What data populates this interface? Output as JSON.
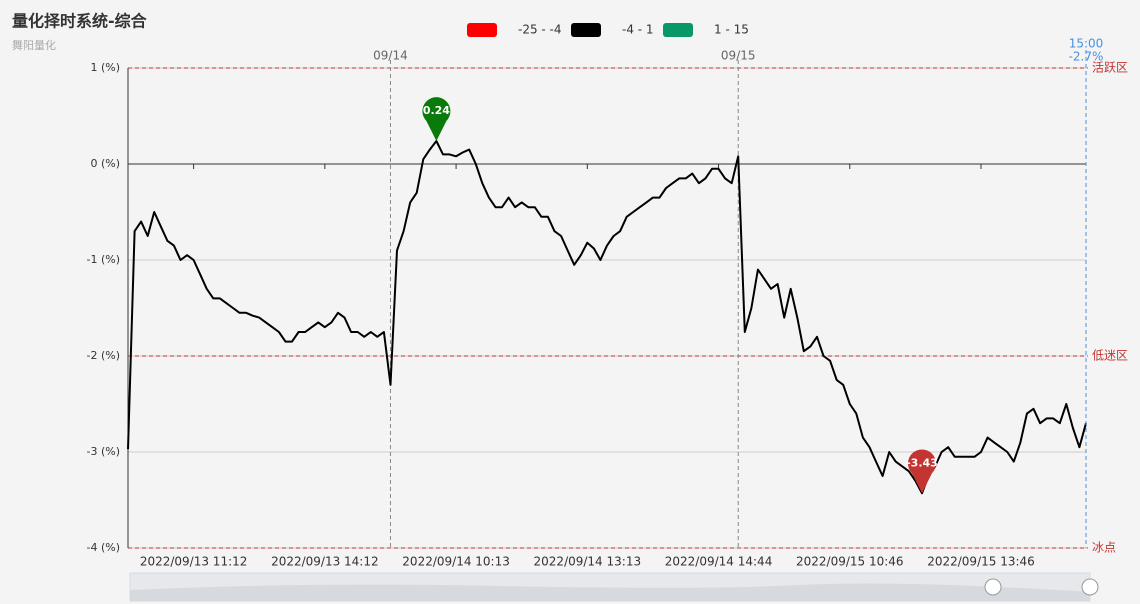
{
  "chart_data": {
    "type": "line",
    "title": "量化择时系统-综合",
    "subtitle": "舞阳量化",
    "visual_map": [
      {
        "label": "-25 - -4",
        "color": "#ff0000"
      },
      {
        "label": "-4 - 1",
        "color": "#000000"
      },
      {
        "label": "1 - 15",
        "color": "#079768"
      }
    ],
    "categories": [
      null,
      null,
      null,
      null,
      null,
      null,
      null,
      null,
      null,
      null,
      "2022/09/13 11:12",
      null,
      null,
      null,
      null,
      null,
      null,
      null,
      null,
      null,
      null,
      null,
      null,
      null,
      null,
      null,
      null,
      null,
      null,
      null,
      "2022/09/13 14:12",
      null,
      null,
      null,
      null,
      null,
      null,
      null,
      null,
      null,
      null,
      null,
      null,
      null,
      null,
      null,
      null,
      null,
      null,
      null,
      "2022/09/14 10:13",
      null,
      null,
      null,
      null,
      null,
      null,
      null,
      null,
      null,
      null,
      null,
      null,
      null,
      null,
      null,
      null,
      null,
      null,
      null,
      "2022/09/14 13:13",
      null,
      null,
      null,
      null,
      null,
      null,
      null,
      null,
      null,
      null,
      null,
      null,
      null,
      null,
      null,
      null,
      null,
      null,
      null,
      "2022/09/14 14:44",
      null,
      null,
      null,
      null,
      null,
      null,
      null,
      null,
      null,
      null,
      null,
      null,
      null,
      null,
      null,
      null,
      null,
      null,
      null,
      "2022/09/15 10:46",
      null,
      null,
      null,
      null,
      null,
      null,
      null,
      null,
      null,
      null,
      null,
      null,
      null,
      null,
      null,
      null,
      null,
      null,
      null,
      "2022/09/15 13:46",
      null,
      null,
      null,
      null,
      null,
      null,
      null,
      null,
      null,
      null,
      null,
      null,
      null,
      null,
      null,
      null
    ],
    "series": [
      {
        "color": "#000000",
        "values": [
          -2.97,
          -0.7,
          -0.6,
          -0.75,
          -0.5,
          -0.65,
          -0.8,
          -0.85,
          -1.0,
          -0.95,
          -1.0,
          -1.15,
          -1.3,
          -1.4,
          -1.4,
          -1.45,
          -1.5,
          -1.55,
          -1.55,
          -1.58,
          -1.6,
          -1.65,
          -1.7,
          -1.75,
          -1.85,
          -1.85,
          -1.75,
          -1.75,
          -1.7,
          -1.65,
          -1.7,
          -1.65,
          -1.55,
          -1.6,
          -1.75,
          -1.75,
          -1.8,
          -1.75,
          -1.8,
          -1.75,
          -2.3,
          -0.9,
          -0.7,
          -0.4,
          -0.3,
          0.05,
          0.15,
          0.24,
          0.1,
          0.1,
          0.08,
          0.12,
          0.15,
          0.0,
          -0.2,
          -0.35,
          -0.45,
          -0.45,
          -0.35,
          -0.45,
          -0.4,
          -0.45,
          -0.45,
          -0.55,
          -0.55,
          -0.7,
          -0.75,
          -0.9,
          -1.05,
          -0.95,
          -0.82,
          -0.88,
          -1.0,
          -0.85,
          -0.75,
          -0.7,
          -0.55,
          -0.5,
          -0.45,
          -0.4,
          -0.35,
          -0.35,
          -0.25,
          -0.2,
          -0.15,
          -0.15,
          -0.1,
          -0.2,
          -0.15,
          -0.05,
          -0.05,
          -0.15,
          -0.2,
          0.08,
          -1.75,
          -1.5,
          -1.1,
          -1.2,
          -1.3,
          -1.25,
          -1.6,
          -1.3,
          -1.6,
          -1.95,
          -1.9,
          -1.8,
          -2.0,
          -2.05,
          -2.25,
          -2.3,
          -2.5,
          -2.6,
          -2.85,
          -2.95,
          -3.1,
          -3.25,
          -3.0,
          -3.1,
          -3.15,
          -3.2,
          -3.3,
          -3.43,
          -3.25,
          -3.15,
          -3.0,
          -2.95,
          -3.05,
          -3.05,
          -3.05,
          -3.05,
          -3.0,
          -2.85,
          -2.9,
          -2.95,
          -3.0,
          -3.1,
          -2.9,
          -2.6,
          -2.55,
          -2.7,
          -2.65,
          -2.65,
          -2.7,
          -2.5,
          -2.75,
          -2.95,
          -2.7
        ]
      }
    ],
    "ylim": [
      -4,
      1
    ],
    "yticks": [
      {
        "value": -4,
        "label": "-4 (%)"
      },
      {
        "value": -3,
        "label": "-3 (%)"
      },
      {
        "value": -2,
        "label": "-2 (%)"
      },
      {
        "value": -1,
        "label": "-1 (%)"
      },
      {
        "value": 0,
        "label": "0 (%)"
      },
      {
        "value": 1,
        "label": "1 (%)"
      }
    ],
    "grid": true,
    "mark_lines": [
      {
        "value": 1,
        "label": "活跃区"
      },
      {
        "value": -2,
        "label": "低迷区"
      },
      {
        "value": -4,
        "label": "冰点"
      }
    ],
    "mark_points": [
      {
        "value": 0.24,
        "color": "#0a7a0a"
      },
      {
        "value": -3.43,
        "color": "#c23531"
      }
    ],
    "day_marks": [
      {
        "index": 40,
        "label": "09/14"
      },
      {
        "index": 93,
        "label": "09/15"
      }
    ],
    "end_marker": {
      "label": "15:00",
      "value": -2.7,
      "value_label": "-2.7%"
    }
  }
}
